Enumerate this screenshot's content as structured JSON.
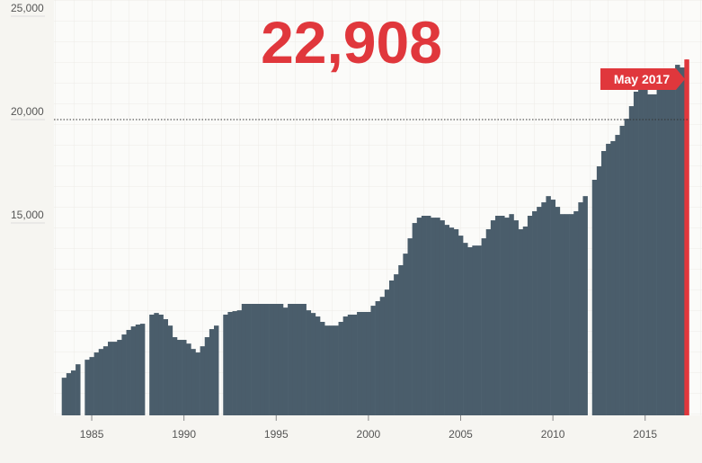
{
  "chart_data": {
    "type": "bar",
    "headline": "22,908",
    "highlight_label": "May 2017",
    "color": "#4a5d6b",
    "highlight_color": "#e0373c",
    "reference_line": 20000,
    "xlim": [
      1983,
      2017.4
    ],
    "xticks": [
      1985,
      1990,
      1995,
      2000,
      2005,
      2010,
      2015
    ],
    "ylim": [
      5700,
      25000
    ],
    "yticks": [
      {
        "value": 15000,
        "label": "15,000"
      },
      {
        "value": 20000,
        "label": "20,000"
      },
      {
        "value": 25000,
        "label": "25,000"
      }
    ],
    "x": [
      1983.5,
      1983.75,
      1984,
      1984.25,
      1984.5,
      1984.75,
      1985,
      1985.25,
      1985.5,
      1985.75,
      1986,
      1986.25,
      1986.5,
      1986.75,
      1987,
      1987.25,
      1987.5,
      1987.75,
      1988,
      1988.25,
      1988.5,
      1988.75,
      1989,
      1989.25,
      1989.5,
      1989.75,
      1990,
      1990.25,
      1990.5,
      1990.75,
      1991,
      1991.25,
      1991.5,
      1991.75,
      1992,
      1992.25,
      1992.5,
      1992.75,
      1993,
      1993.25,
      1993.5,
      1993.75,
      1994,
      1994.25,
      1994.5,
      1994.75,
      1995,
      1995.25,
      1995.5,
      1995.75,
      1996,
      1996.25,
      1996.5,
      1996.75,
      1997,
      1997.25,
      1997.5,
      1997.75,
      1998,
      1998.25,
      1998.5,
      1998.75,
      1999,
      1999.25,
      1999.5,
      1999.75,
      2000,
      2000.25,
      2000.5,
      2000.75,
      2001,
      2001.25,
      2001.5,
      2001.75,
      2002,
      2002.25,
      2002.5,
      2002.75,
      2003,
      2003.25,
      2003.5,
      2003.75,
      2004,
      2004.25,
      2004.5,
      2004.75,
      2005,
      2005.25,
      2005.5,
      2005.75,
      2006,
      2006.25,
      2006.5,
      2006.75,
      2007,
      2007.25,
      2007.5,
      2007.75,
      2008,
      2008.25,
      2008.5,
      2008.75,
      2009,
      2009.25,
      2009.5,
      2009.75,
      2010,
      2010.25,
      2010.5,
      2010.75,
      2011,
      2011.25,
      2011.5,
      2011.75,
      2012,
      2012.25,
      2012.5,
      2012.75,
      2013,
      2013.25,
      2013.5,
      2013.75,
      2014,
      2014.25,
      2014.5,
      2014.75,
      2015,
      2015.25,
      2015.5,
      2015.75,
      2016,
      2016.25,
      2016.5,
      2016.75,
      2017,
      2017.25
    ],
    "values": [
      7520,
      7740,
      7870,
      8170,
      null,
      8390,
      8520,
      8740,
      8910,
      9040,
      9260,
      9260,
      9350,
      9610,
      9830,
      10000,
      10090,
      10130,
      null,
      10570,
      10650,
      10570,
      10350,
      10040,
      9480,
      9350,
      9350,
      9170,
      8910,
      8740,
      9040,
      9480,
      9870,
      10040,
      null,
      10570,
      10700,
      10740,
      10780,
      11090,
      11090,
      11090,
      11090,
      11090,
      11090,
      11090,
      11090,
      11090,
      10910,
      11090,
      11090,
      11090,
      11090,
      10780,
      10650,
      10480,
      10220,
      10040,
      10040,
      10040,
      10220,
      10480,
      10570,
      10570,
      10700,
      10700,
      10700,
      11000,
      11220,
      11430,
      11780,
      12220,
      12520,
      12960,
      13520,
      14260,
      15000,
      15260,
      15350,
      15350,
      15260,
      15260,
      15130,
      14910,
      14780,
      14700,
      14390,
      14040,
      13830,
      13910,
      13910,
      14260,
      14700,
      15130,
      15350,
      15350,
      15260,
      15430,
      15130,
      14700,
      14830,
      15350,
      15570,
      15780,
      16000,
      16300,
      16130,
      15780,
      15430,
      15430,
      15430,
      15570,
      16000,
      16300,
      null,
      17090,
      17740,
      18480,
      18830,
      18960,
      19260,
      19700,
      20040,
      20650,
      21350,
      21780,
      21650,
      21220,
      21220,
      21520,
      21780,
      22090,
      22390,
      22650,
      22520,
      22908
    ]
  }
}
